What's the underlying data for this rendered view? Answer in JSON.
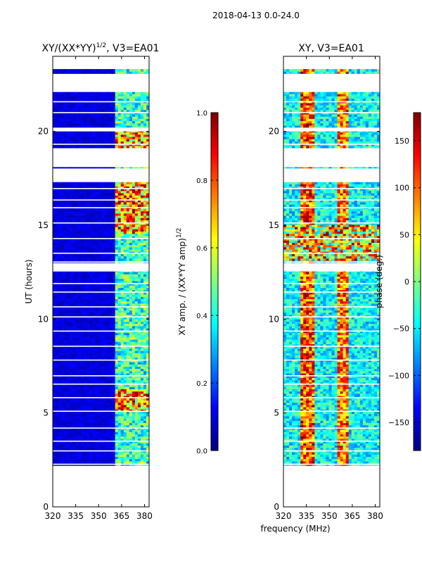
{
  "suptitle": "2018-04-13 0.0-24.0",
  "colors": {
    "jet": [
      "#00007f",
      "#0000ff",
      "#007fff",
      "#00ffff",
      "#7fff7f",
      "#ffff00",
      "#ff7f00",
      "#ff0000",
      "#7f0000"
    ]
  },
  "chart_data": [
    {
      "type": "heatmap",
      "title": "XY/(XX*YY)",
      "title_sup": "1/2",
      "title_tail": ", V3=EA01",
      "ylabel": "UT (hours)",
      "xlim": [
        320,
        383
      ],
      "ylim": [
        0,
        24
      ],
      "xticks": [
        "320",
        "335",
        "350",
        "365",
        "380"
      ],
      "xtick_values": [
        320,
        335,
        350,
        365,
        380
      ],
      "yticks": [
        "0",
        "5",
        "10",
        "15",
        "20"
      ],
      "ytick_values": [
        0,
        5,
        10,
        15,
        20
      ],
      "data_ut_range": [
        2.2,
        23.3
      ],
      "colorbar": {
        "label": "XY amp. / (XX*YY amp)",
        "label_sup": "1/2",
        "range": [
          0.0,
          1.0
        ],
        "ticks": [
          "0.0",
          "0.2",
          "0.4",
          "0.6",
          "0.8",
          "1.0"
        ],
        "tick_values": [
          0.0,
          0.2,
          0.4,
          0.6,
          0.8,
          1.0
        ]
      }
    },
    {
      "type": "heatmap",
      "title": "XY, V3=EA01",
      "xlabel": "frequency (MHz)",
      "xlim": [
        320,
        383
      ],
      "ylim": [
        0,
        24
      ],
      "xticks": [
        "320",
        "335",
        "350",
        "365",
        "380"
      ],
      "xtick_values": [
        320,
        335,
        350,
        365,
        380
      ],
      "yticks": [
        "0",
        "5",
        "10",
        "15",
        "20"
      ],
      "ytick_values": [
        0,
        5,
        10,
        15,
        20
      ],
      "data_ut_range": [
        2.2,
        23.3
      ],
      "colorbar": {
        "label": "phase (deg.)",
        "range": [
          -180,
          180
        ],
        "ticks": [
          "−150",
          "−100",
          "−50",
          "0",
          "50",
          "100",
          "150"
        ],
        "tick_values": [
          -150,
          -100,
          -50,
          0,
          50,
          100,
          150
        ]
      }
    }
  ]
}
